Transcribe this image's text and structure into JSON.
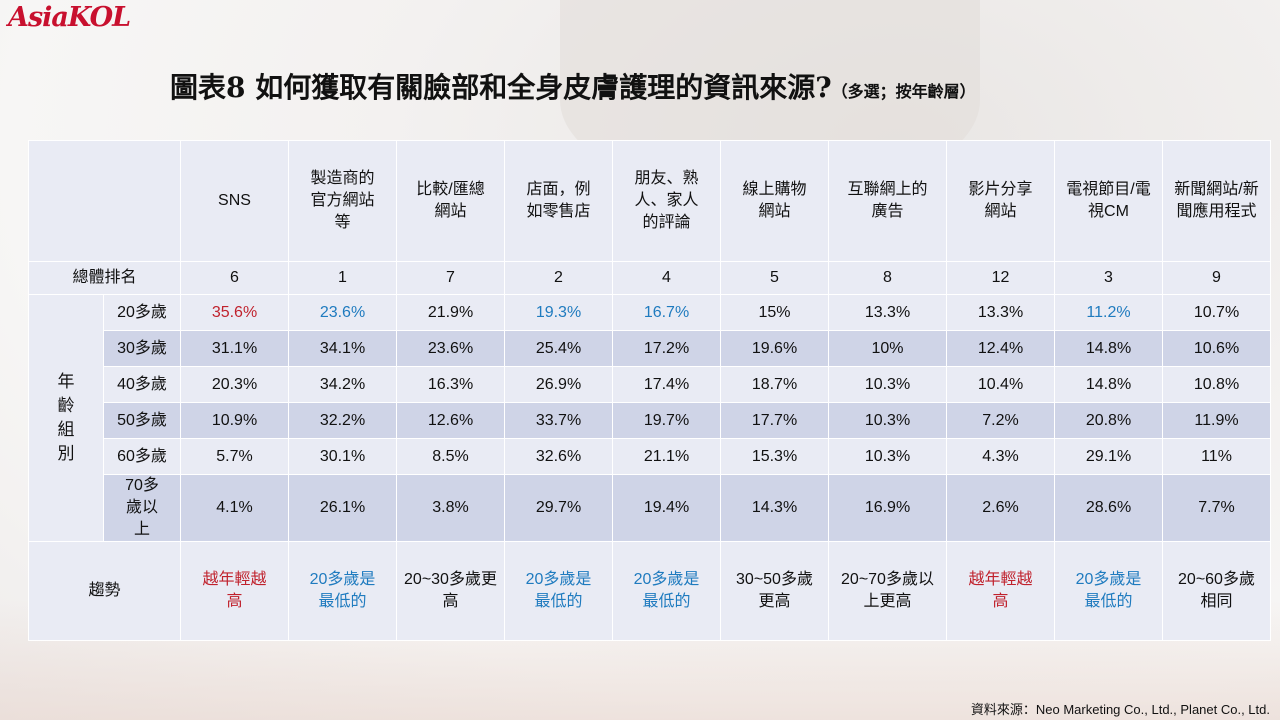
{
  "brand": {
    "logo_text": "AsiaKOL"
  },
  "chart_data": {
    "type": "table",
    "title": "圖表8  如何獲取有關臉部和全身皮膚護理的資訊來源?",
    "subtitle": "（多選；按年齡層）",
    "row_group_label": "年齡組別",
    "rank_label": "總體排名",
    "trend_label": "趨勢",
    "columns": [
      "SNS",
      "製造商的官方網站等",
      "比較/匯總網站",
      "店面，例如零售店",
      "朋友、熟人、家人的評論",
      "線上購物網站",
      "互聯網上的廣告",
      "影片分享網站",
      "電視節目/電視CM",
      "新聞網站/新聞應用程式"
    ],
    "overall_rank": [
      "6",
      "1",
      "7",
      "2",
      "4",
      "5",
      "8",
      "12",
      "3",
      "9"
    ],
    "rows": [
      {
        "label": "20多歲",
        "values": [
          "35.6%",
          "23.6%",
          "21.9%",
          "19.3%",
          "16.7%",
          "15%",
          "13.3%",
          "13.3%",
          "11.2%",
          "10.7%"
        ]
      },
      {
        "label": "30多歲",
        "values": [
          "31.1%",
          "34.1%",
          "23.6%",
          "25.4%",
          "17.2%",
          "19.6%",
          "10%",
          "12.4%",
          "14.8%",
          "10.6%"
        ]
      },
      {
        "label": "40多歲",
        "values": [
          "20.3%",
          "34.2%",
          "16.3%",
          "26.9%",
          "17.4%",
          "18.7%",
          "10.3%",
          "10.4%",
          "14.8%",
          "10.8%"
        ]
      },
      {
        "label": "50多歲",
        "values": [
          "10.9%",
          "32.2%",
          "12.6%",
          "33.7%",
          "19.7%",
          "17.7%",
          "10.3%",
          "7.2%",
          "20.8%",
          "11.9%"
        ]
      },
      {
        "label": "60多歲",
        "values": [
          "5.7%",
          "30.1%",
          "8.5%",
          "32.6%",
          "21.1%",
          "15.3%",
          "10.3%",
          "4.3%",
          "29.1%",
          "11%"
        ]
      },
      {
        "label": "70多歲以上",
        "values": [
          "4.1%",
          "26.1%",
          "3.8%",
          "29.7%",
          "19.4%",
          "14.3%",
          "16.9%",
          "2.6%",
          "28.6%",
          "7.7%"
        ]
      }
    ],
    "trend": [
      "越年輕越高",
      "20多歲是最低的",
      "20~30多歲更高",
      "20多歲是最低的",
      "20多歲是最低的",
      "30~50多歲更高",
      "20~70多歲以上更高",
      "越年輕越高",
      "20多歲是最低的",
      "20~60多歲相同"
    ],
    "colors": {
      "highlight_red": "#c0222d",
      "highlight_blue": "#1f7bbf"
    }
  },
  "footer": {
    "source": "資料來源：Neo Marketing Co., Ltd., Planet Co., Ltd."
  }
}
